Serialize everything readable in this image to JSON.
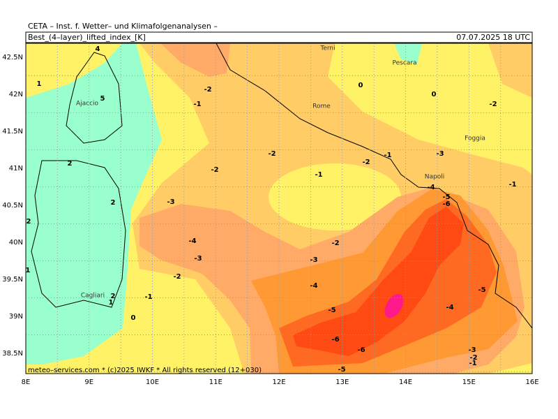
{
  "header": "CETA – Inst. f. Wetter– und Klimafolgenanalysen –",
  "title": "Best_(4–layer)_lifted_index_[K]",
  "datetime": "07.07.2025 18 UTC",
  "lat_labels": [
    "42.5N",
    "42N",
    "41.5N",
    "41N",
    "40.5N",
    "40N",
    "39.5N",
    "39N",
    "38.5N"
  ],
  "lon_labels": [
    "8E",
    "9E",
    "10E",
    "11E",
    "12E",
    "13E",
    "14E",
    "15E",
    "16E"
  ],
  "cities": [
    "Terni",
    "Pescara",
    "Rome",
    "Foggia",
    "Napoli",
    "Ajaccio",
    "Cagliari"
  ],
  "contour_labels": [
    -2,
    -1,
    -2,
    -2,
    -1,
    -2,
    -1,
    -3,
    -4,
    -5,
    -6,
    -3,
    -4,
    -3,
    -2,
    -3,
    -2,
    -1,
    -4,
    -5,
    -6,
    -6,
    -5,
    -4,
    -5,
    -3,
    -2,
    -1,
    0,
    0,
    -2,
    -1,
    0,
    2,
    1,
    2,
    2,
    2,
    1,
    1,
    5,
    4
  ],
  "footer": "meteo–services.com * (c)2025 IWKF * All rights reserved (12+030)"
}
